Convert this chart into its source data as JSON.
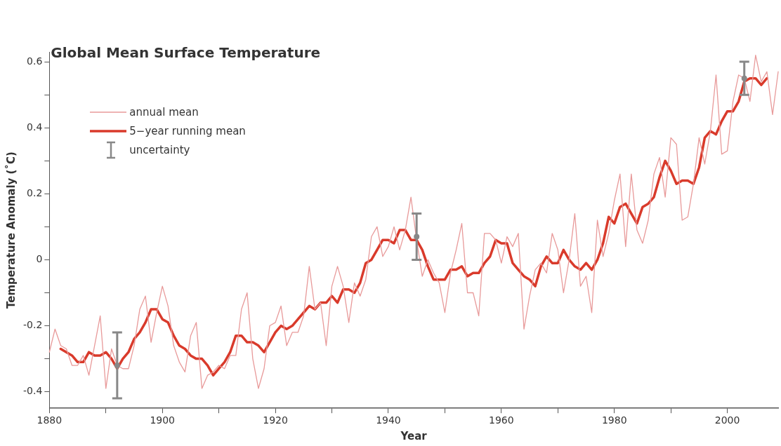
{
  "chart_data": {
    "type": "line",
    "title": "Global Mean Surface Temperature",
    "xlabel": "Year",
    "ylabel": "Temperature Anomaly (˚C)",
    "x": [
      1880,
      1881,
      1882,
      1883,
      1884,
      1885,
      1886,
      1887,
      1888,
      1889,
      1890,
      1891,
      1892,
      1893,
      1894,
      1895,
      1896,
      1897,
      1898,
      1899,
      1900,
      1901,
      1902,
      1903,
      1904,
      1905,
      1906,
      1907,
      1908,
      1909,
      1910,
      1911,
      1912,
      1913,
      1914,
      1915,
      1916,
      1917,
      1918,
      1919,
      1920,
      1921,
      1922,
      1923,
      1924,
      1925,
      1926,
      1927,
      1928,
      1929,
      1930,
      1931,
      1932,
      1933,
      1934,
      1935,
      1936,
      1937,
      1938,
      1939,
      1940,
      1941,
      1942,
      1943,
      1944,
      1945,
      1946,
      1947,
      1948,
      1949,
      1950,
      1951,
      1952,
      1953,
      1954,
      1955,
      1956,
      1957,
      1958,
      1959,
      1960,
      1961,
      1962,
      1963,
      1964,
      1965,
      1966,
      1967,
      1968,
      1969,
      1970,
      1971,
      1972,
      1973,
      1974,
      1975,
      1976,
      1977,
      1978,
      1979,
      1980,
      1981,
      1982,
      1983,
      1984,
      1985,
      1986,
      1987,
      1988,
      1989,
      1990,
      1991,
      1992,
      1993,
      1994,
      1995,
      1996,
      1997,
      1998,
      1999,
      2000,
      2001,
      2002,
      2003,
      2004,
      2005,
      2006,
      2007,
      2008,
      2009
    ],
    "series": [
      {
        "name": "annual mean",
        "type": "line",
        "color": "#e89a9a",
        "values": [
          -0.28,
          -0.21,
          -0.26,
          -0.27,
          -0.32,
          -0.32,
          -0.29,
          -0.35,
          -0.26,
          -0.17,
          -0.39,
          -0.27,
          -0.32,
          -0.33,
          -0.33,
          -0.26,
          -0.15,
          -0.11,
          -0.25,
          -0.16,
          -0.08,
          -0.14,
          -0.26,
          -0.31,
          -0.34,
          -0.23,
          -0.19,
          -0.39,
          -0.35,
          -0.34,
          -0.32,
          -0.33,
          -0.29,
          -0.29,
          -0.15,
          -0.1,
          -0.3,
          -0.39,
          -0.33,
          -0.2,
          -0.19,
          -0.14,
          -0.26,
          -0.22,
          -0.22,
          -0.17,
          -0.02,
          -0.15,
          -0.13,
          -0.26,
          -0.08,
          -0.02,
          -0.08,
          -0.19,
          -0.07,
          -0.11,
          -0.06,
          0.07,
          0.1,
          0.01,
          0.04,
          0.1,
          0.03,
          0.09,
          0.19,
          0.06,
          -0.05,
          0.0,
          -0.04,
          -0.07,
          -0.16,
          -0.04,
          0.03,
          0.11,
          -0.1,
          -0.1,
          -0.17,
          0.08,
          0.08,
          0.06,
          -0.01,
          0.07,
          0.04,
          0.08,
          -0.21,
          -0.11,
          -0.03,
          -0.01,
          -0.04,
          0.08,
          0.03,
          -0.1,
          0.0,
          0.14,
          -0.08,
          -0.05,
          -0.16,
          0.12,
          0.01,
          0.08,
          0.18,
          0.26,
          0.04,
          0.26,
          0.09,
          0.05,
          0.12,
          0.26,
          0.31,
          0.19,
          0.37,
          0.35,
          0.12,
          0.13,
          0.23,
          0.37,
          0.29,
          0.39,
          0.56,
          0.32,
          0.33,
          0.48,
          0.56,
          0.55,
          0.48,
          0.62,
          0.54,
          0.57,
          0.44,
          0.57
        ]
      },
      {
        "name": "5−year running mean",
        "type": "line",
        "color": "#d93a2b",
        "x": [
          1882,
          1883,
          1884,
          1885,
          1886,
          1887,
          1888,
          1889,
          1890,
          1891,
          1892,
          1893,
          1894,
          1895,
          1896,
          1897,
          1898,
          1899,
          1900,
          1901,
          1902,
          1903,
          1904,
          1905,
          1906,
          1907,
          1908,
          1909,
          1910,
          1911,
          1912,
          1913,
          1914,
          1915,
          1916,
          1917,
          1918,
          1919,
          1920,
          1921,
          1922,
          1923,
          1924,
          1925,
          1926,
          1927,
          1928,
          1929,
          1930,
          1931,
          1932,
          1933,
          1934,
          1935,
          1936,
          1937,
          1938,
          1939,
          1940,
          1941,
          1942,
          1943,
          1944,
          1945,
          1946,
          1947,
          1948,
          1949,
          1950,
          1951,
          1952,
          1953,
          1954,
          1955,
          1956,
          1957,
          1958,
          1959,
          1960,
          1961,
          1962,
          1963,
          1964,
          1965,
          1966,
          1967,
          1968,
          1969,
          1970,
          1971,
          1972,
          1973,
          1974,
          1975,
          1976,
          1977,
          1978,
          1979,
          1980,
          1981,
          1982,
          1983,
          1984,
          1985,
          1986,
          1987,
          1988,
          1989,
          1990,
          1991,
          1992,
          1993,
          1994,
          1995,
          1996,
          1997,
          1998,
          1999,
          2000,
          2001,
          2002,
          2003,
          2004,
          2005,
          2006,
          2007
        ],
        "values": [
          -0.27,
          -0.28,
          -0.29,
          -0.31,
          -0.31,
          -0.28,
          -0.29,
          -0.29,
          -0.28,
          -0.3,
          -0.33,
          -0.3,
          -0.28,
          -0.24,
          -0.22,
          -0.19,
          -0.15,
          -0.15,
          -0.18,
          -0.19,
          -0.23,
          -0.26,
          -0.27,
          -0.29,
          -0.3,
          -0.3,
          -0.32,
          -0.35,
          -0.33,
          -0.31,
          -0.28,
          -0.23,
          -0.23,
          -0.25,
          -0.25,
          -0.26,
          -0.28,
          -0.25,
          -0.22,
          -0.2,
          -0.21,
          -0.2,
          -0.18,
          -0.16,
          -0.14,
          -0.15,
          -0.13,
          -0.13,
          -0.11,
          -0.13,
          -0.09,
          -0.09,
          -0.1,
          -0.07,
          -0.01,
          0.0,
          0.03,
          0.06,
          0.06,
          0.05,
          0.09,
          0.09,
          0.06,
          0.06,
          0.03,
          -0.02,
          -0.06,
          -0.06,
          -0.06,
          -0.03,
          -0.03,
          -0.02,
          -0.05,
          -0.04,
          -0.04,
          -0.01,
          0.01,
          0.06,
          0.05,
          0.05,
          -0.01,
          -0.03,
          -0.05,
          -0.06,
          -0.08,
          -0.02,
          0.01,
          -0.01,
          -0.01,
          0.03,
          0.0,
          -0.02,
          -0.03,
          -0.01,
          -0.03,
          0.0,
          0.05,
          0.13,
          0.11,
          0.16,
          0.17,
          0.14,
          0.11,
          0.16,
          0.17,
          0.19,
          0.25,
          0.3,
          0.27,
          0.23,
          0.24,
          0.24,
          0.23,
          0.28,
          0.37,
          0.39,
          0.38,
          0.42,
          0.45,
          0.45,
          0.48,
          0.54,
          0.55,
          0.55,
          0.53,
          0.55
        ]
      },
      {
        "name": "uncertainty",
        "type": "scatter",
        "marker": "circle",
        "color": "#888888",
        "x": [
          1892,
          1945,
          2003
        ],
        "values": [
          -0.32,
          0.07,
          0.55
        ],
        "errors": [
          0.1,
          0.07,
          0.05
        ]
      }
    ],
    "xlim": [
      1880,
      2009
    ],
    "xticks": [
      1880,
      {
        "value": 1890,
        "label": null
      },
      1900,
      {
        "value": 1910,
        "label": null
      },
      1920,
      {
        "value": 1930,
        "label": null
      },
      1940,
      {
        "value": 1950,
        "label": null
      },
      1960,
      {
        "value": 1970,
        "label": null
      },
      1980,
      {
        "value": 1990,
        "label": null
      },
      2000
    ],
    "ylim": [
      -0.45,
      0.63
    ],
    "yticks": [
      -0.4,
      {
        "value": -0.3,
        "label": null
      },
      -0.2,
      {
        "value": -0.1,
        "label": null
      },
      0,
      {
        "value": 0.1,
        "label": null
      },
      0.2,
      {
        "value": 0.3,
        "label": null
      },
      0.4,
      {
        "value": 0.5,
        "label": null
      },
      0.6
    ],
    "grid": false,
    "legend": "top left",
    "marker": "none",
    "line_style": "solid"
  }
}
